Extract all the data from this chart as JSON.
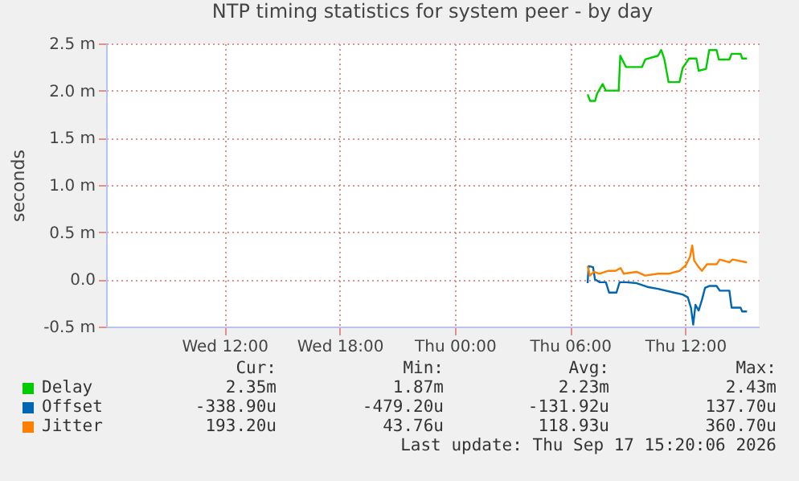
{
  "chart_data": {
    "type": "line",
    "title": "NTP timing statistics for system peer - by day",
    "ylabel": "seconds",
    "xlim": [
      "2026-09-16T05:50",
      "2026-09-17T15:50"
    ],
    "xticks": [
      {
        "value": "2026-09-16T12:00",
        "label": "Wed 12:00"
      },
      {
        "value": "2026-09-16T18:00",
        "label": "Wed 18:00"
      },
      {
        "value": "2026-09-17T00:00",
        "label": "Thu 00:00"
      },
      {
        "value": "2026-09-17T06:00",
        "label": "Thu 06:00"
      },
      {
        "value": "2026-09-17T12:00",
        "label": "Thu 12:00"
      }
    ],
    "ylim": [
      -0.5,
      2.5
    ],
    "yticks": [
      {
        "value": -0.5,
        "label": "-0.5 m"
      },
      {
        "value": 0,
        "label": "0.0"
      },
      {
        "value": 0.5,
        "label": "0.5 m"
      },
      {
        "value": 1,
        "label": "1.0 m"
      },
      {
        "value": 1.5,
        "label": "1.5 m"
      },
      {
        "value": 2,
        "label": "2.0 m"
      },
      {
        "value": 2.5,
        "label": "2.5 m"
      }
    ],
    "grid": true,
    "legend": "bottom",
    "series": [
      {
        "name": "Delay",
        "color": "#00cc00",
        "x": [
          "2026-09-17T06:55",
          "2026-09-17T07:03",
          "2026-09-17T07:18",
          "2026-09-17T07:25",
          "2026-09-17T07:42",
          "2026-09-17T07:52",
          "2026-09-17T08:32",
          "2026-09-17T08:37",
          "2026-09-17T08:55",
          "2026-09-17T09:45",
          "2026-09-17T09:55",
          "2026-09-17T10:35",
          "2026-09-17T10:45",
          "2026-09-17T10:55",
          "2026-09-17T11:08",
          "2026-09-17T11:42",
          "2026-09-17T11:52",
          "2026-09-17T12:02",
          "2026-09-17T12:12",
          "2026-09-17T12:35",
          "2026-09-17T12:42",
          "2026-09-17T13:05",
          "2026-09-17T13:15",
          "2026-09-17T13:38",
          "2026-09-17T13:45",
          "2026-09-17T14:18",
          "2026-09-17T14:25",
          "2026-09-17T14:53",
          "2026-09-17T14:58",
          "2026-09-17T15:13"
        ],
        "values": [
          1.96,
          1.89,
          1.89,
          1.97,
          2.07,
          2.0,
          2.0,
          2.37,
          2.25,
          2.25,
          2.33,
          2.37,
          2.43,
          2.33,
          2.09,
          2.09,
          2.24,
          2.29,
          2.34,
          2.34,
          2.21,
          2.23,
          2.43,
          2.43,
          2.33,
          2.33,
          2.39,
          2.39,
          2.34,
          2.34
        ]
      },
      {
        "name": "Offset",
        "color": "#0066b3",
        "x": [
          "2026-09-17T06:55",
          "2026-09-17T06:58",
          "2026-09-17T07:12",
          "2026-09-17T07:18",
          "2026-09-17T07:32",
          "2026-09-17T07:52",
          "2026-09-17T08:02",
          "2026-09-17T08:25",
          "2026-09-17T08:35",
          "2026-09-17T08:55",
          "2026-09-17T09:28",
          "2026-09-17T10:02",
          "2026-09-17T10:35",
          "2026-09-17T11:25",
          "2026-09-17T11:52",
          "2026-09-17T12:08",
          "2026-09-17T12:18",
          "2026-09-17T12:25",
          "2026-09-17T12:32",
          "2026-09-17T12:42",
          "2026-09-17T12:52",
          "2026-09-17T13:02",
          "2026-09-17T13:15",
          "2026-09-17T13:38",
          "2026-09-17T13:48",
          "2026-09-17T14:18",
          "2026-09-17T14:25",
          "2026-09-17T14:53",
          "2026-09-17T14:58",
          "2026-09-17T15:13"
        ],
        "values": [
          -0.04,
          0.14,
          0.13,
          0.0,
          -0.03,
          -0.03,
          -0.14,
          -0.14,
          -0.03,
          -0.03,
          -0.04,
          -0.08,
          -0.1,
          -0.14,
          -0.16,
          -0.19,
          -0.3,
          -0.48,
          -0.27,
          -0.33,
          -0.22,
          -0.09,
          -0.07,
          -0.07,
          -0.12,
          -0.12,
          -0.3,
          -0.3,
          -0.34,
          -0.34
        ]
      },
      {
        "name": "Jitter",
        "color": "#ff8000",
        "x": [
          "2026-09-17T06:55",
          "2026-09-17T07:02",
          "2026-09-17T07:15",
          "2026-09-17T07:32",
          "2026-09-17T07:58",
          "2026-09-17T08:22",
          "2026-09-17T08:38",
          "2026-09-17T08:48",
          "2026-09-17T09:28",
          "2026-09-17T09:55",
          "2026-09-17T10:35",
          "2026-09-17T11:08",
          "2026-09-17T11:42",
          "2026-09-17T12:02",
          "2026-09-17T12:15",
          "2026-09-17T12:22",
          "2026-09-17T12:28",
          "2026-09-17T12:42",
          "2026-09-17T12:52",
          "2026-09-17T13:08",
          "2026-09-17T13:38",
          "2026-09-17T13:48",
          "2026-09-17T14:18",
          "2026-09-17T14:28",
          "2026-09-17T15:13"
        ],
        "values": [
          0.14,
          0.04,
          0.08,
          0.06,
          0.09,
          0.09,
          0.12,
          0.06,
          0.08,
          0.04,
          0.06,
          0.06,
          0.09,
          0.15,
          0.24,
          0.36,
          0.2,
          0.13,
          0.09,
          0.16,
          0.16,
          0.21,
          0.18,
          0.21,
          0.18
        ]
      }
    ],
    "annotations": [
      "Cur:",
      "Min:",
      "Avg:",
      "Max:",
      "2.35m",
      "1.87m",
      "2.23m",
      "2.43m",
      "-338.90u",
      "-479.20u",
      "-131.92u",
      "137.70u",
      "193.20u",
      "43.76u",
      "118.93u",
      "360.70u",
      "Last update: Thu Sep 17 15:20:06 2026"
    ]
  }
}
